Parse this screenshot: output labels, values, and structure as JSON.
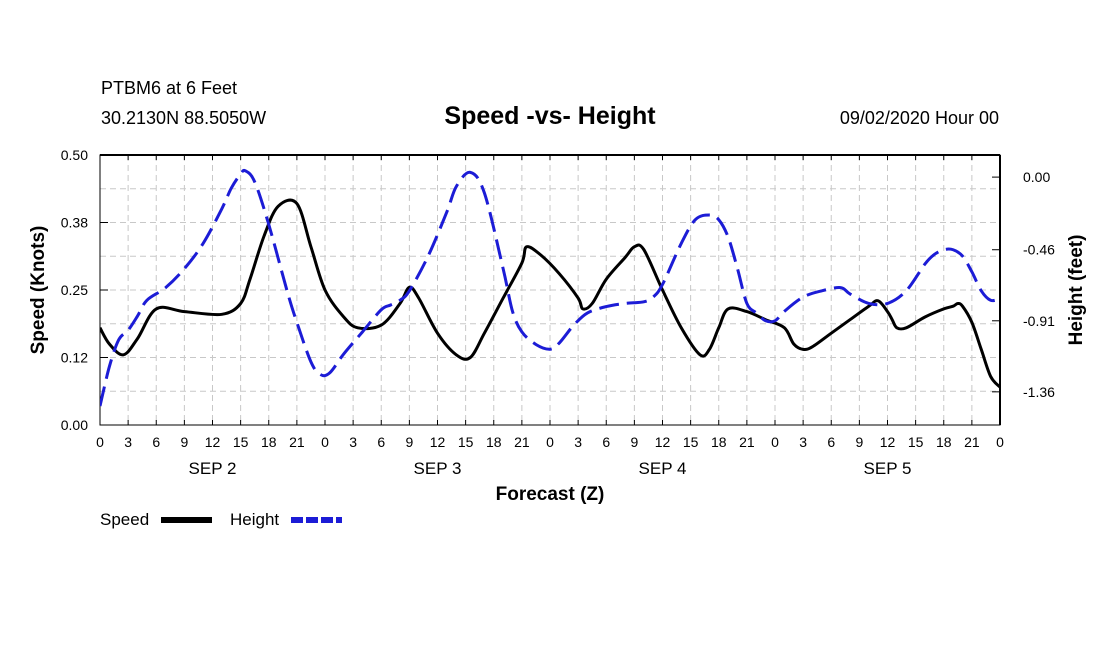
{
  "header": {
    "station": "PTBM6 at 6 Feet",
    "coords": "30.2130N 88.5050W",
    "title": "Speed -vs- Height",
    "datetime": "09/02/2020 Hour 00"
  },
  "chart_data": {
    "type": "line",
    "title": "Speed -vs- Height",
    "xlabel": "Forecast (Z)",
    "ylabel": "Speed (Knots)",
    "y2label": "Height (feet)",
    "xlim": [
      0,
      96
    ],
    "ylim": [
      0,
      0.5
    ],
    "y2lim": [
      -1.57,
      0.14
    ],
    "x_tick_labels": [
      "0",
      "3",
      "6",
      "9",
      "12",
      "15",
      "18",
      "21",
      "0",
      "3",
      "6",
      "9",
      "12",
      "15",
      "18",
      "21",
      "0",
      "3",
      "6",
      "9",
      "12",
      "15",
      "18",
      "21",
      "0",
      "3",
      "6",
      "9",
      "12",
      "15",
      "18",
      "21",
      "0"
    ],
    "y_tick_values": [
      0.0,
      0.125,
      0.25,
      0.375,
      0.5
    ],
    "y_tick_labels": [
      "0.00",
      "0.12",
      "0.25",
      "0.38",
      "0.50"
    ],
    "y2_tick_values": [
      0.0,
      -0.46,
      -0.91,
      -1.36
    ],
    "y2_tick_labels": [
      "0.00",
      "-0.46",
      "-0.91",
      "-1.36"
    ],
    "day_labels": [
      {
        "hour": 12,
        "label": "SEP 2"
      },
      {
        "hour": 36,
        "label": "SEP 3"
      },
      {
        "hour": 60,
        "label": "SEP 4"
      },
      {
        "hour": 84,
        "label": "SEP 5"
      }
    ],
    "grid": true,
    "series": [
      {
        "name": "Speed",
        "axis": "left",
        "color": "#000000",
        "dash": "solid",
        "points": [
          [
            0,
            0.18
          ],
          [
            1,
            0.15
          ],
          [
            2.5,
            0.13
          ],
          [
            4,
            0.16
          ],
          [
            6,
            0.215
          ],
          [
            9,
            0.21
          ],
          [
            13,
            0.205
          ],
          [
            15,
            0.225
          ],
          [
            16,
            0.27
          ],
          [
            17.5,
            0.35
          ],
          [
            19,
            0.405
          ],
          [
            21,
            0.41
          ],
          [
            22.5,
            0.33
          ],
          [
            24,
            0.25
          ],
          [
            26,
            0.2
          ],
          [
            27.5,
            0.18
          ],
          [
            30,
            0.185
          ],
          [
            32,
            0.225
          ],
          [
            33,
            0.255
          ],
          [
            34,
            0.235
          ],
          [
            36,
            0.17
          ],
          [
            38,
            0.13
          ],
          [
            39.5,
            0.125
          ],
          [
            41,
            0.17
          ],
          [
            43,
            0.235
          ],
          [
            45,
            0.3
          ],
          [
            45.5,
            0.33
          ],
          [
            47,
            0.315
          ],
          [
            49,
            0.28
          ],
          [
            51,
            0.235
          ],
          [
            51.5,
            0.215
          ],
          [
            52.5,
            0.225
          ],
          [
            54,
            0.27
          ],
          [
            56,
            0.31
          ],
          [
            57,
            0.33
          ],
          [
            58,
            0.325
          ],
          [
            60,
            0.25
          ],
          [
            62,
            0.18
          ],
          [
            64,
            0.13
          ],
          [
            65,
            0.14
          ],
          [
            66,
            0.18
          ],
          [
            67,
            0.215
          ],
          [
            69,
            0.21
          ],
          [
            71,
            0.195
          ],
          [
            73,
            0.18
          ],
          [
            74,
            0.15
          ],
          [
            75,
            0.14
          ],
          [
            76,
            0.145
          ],
          [
            78,
            0.17
          ],
          [
            80,
            0.195
          ],
          [
            82,
            0.22
          ],
          [
            83,
            0.23
          ],
          [
            84,
            0.21
          ],
          [
            84.5,
            0.195
          ],
          [
            85,
            0.18
          ],
          [
            86,
            0.18
          ],
          [
            88,
            0.2
          ],
          [
            90,
            0.215
          ],
          [
            91,
            0.22
          ],
          [
            91.5,
            0.225
          ],
          [
            92,
            0.22
          ],
          [
            93,
            0.19
          ],
          [
            94,
            0.14
          ],
          [
            95,
            0.09
          ],
          [
            96,
            0.07
          ]
        ]
      },
      {
        "name": "Height",
        "axis": "right",
        "color": "#1c1cd6",
        "dash": "dashed",
        "points": [
          [
            0,
            -1.45
          ],
          [
            1,
            -1.2
          ],
          [
            2,
            -1.03
          ],
          [
            3,
            -0.97
          ],
          [
            4,
            -0.88
          ],
          [
            5,
            -0.78
          ],
          [
            7,
            -0.7
          ],
          [
            9,
            -0.58
          ],
          [
            11,
            -0.42
          ],
          [
            13,
            -0.2
          ],
          [
            14,
            -0.07
          ],
          [
            15,
            0.02
          ],
          [
            15.5,
            0.04
          ],
          [
            16.5,
            -0.03
          ],
          [
            18,
            -0.3
          ],
          [
            20,
            -0.73
          ],
          [
            21,
            -0.92
          ],
          [
            22.5,
            -1.17
          ],
          [
            23.5,
            -1.25
          ],
          [
            24.5,
            -1.24
          ],
          [
            26,
            -1.12
          ],
          [
            28,
            -0.98
          ],
          [
            30,
            -0.84
          ],
          [
            31,
            -0.81
          ],
          [
            32,
            -0.78
          ],
          [
            33,
            -0.72
          ],
          [
            35,
            -0.5
          ],
          [
            37,
            -0.22
          ],
          [
            38,
            -0.06
          ],
          [
            39.5,
            0.03
          ],
          [
            41,
            -0.1
          ],
          [
            43,
            -0.58
          ],
          [
            44,
            -0.85
          ],
          [
            45,
            -0.98
          ],
          [
            46.5,
            -1.06
          ],
          [
            48,
            -1.09
          ],
          [
            49,
            -1.05
          ],
          [
            50.5,
            -0.94
          ],
          [
            52,
            -0.86
          ],
          [
            54,
            -0.82
          ],
          [
            56,
            -0.8
          ],
          [
            58,
            -0.79
          ],
          [
            59,
            -0.76
          ],
          [
            60,
            -0.68
          ],
          [
            62,
            -0.42
          ],
          [
            63.5,
            -0.27
          ],
          [
            65,
            -0.24
          ],
          [
            66,
            -0.27
          ],
          [
            67,
            -0.38
          ],
          [
            68,
            -0.58
          ],
          [
            69,
            -0.8
          ],
          [
            70,
            -0.86
          ],
          [
            71,
            -0.91
          ],
          [
            72,
            -0.91
          ],
          [
            73,
            -0.85
          ],
          [
            75,
            -0.76
          ],
          [
            77,
            -0.72
          ],
          [
            79,
            -0.7
          ],
          [
            80,
            -0.74
          ],
          [
            82,
            -0.8
          ],
          [
            84,
            -0.8
          ],
          [
            86,
            -0.72
          ],
          [
            88,
            -0.55
          ],
          [
            89,
            -0.49
          ],
          [
            90,
            -0.46
          ],
          [
            91,
            -0.46
          ],
          [
            92,
            -0.5
          ],
          [
            93,
            -0.6
          ],
          [
            94,
            -0.72
          ],
          [
            95,
            -0.78
          ],
          [
            96,
            -0.77
          ]
        ]
      }
    ]
  },
  "legend": {
    "speed_label": "Speed",
    "height_label": "Height",
    "speed_color": "#000000",
    "height_color": "#1c1cd6"
  }
}
